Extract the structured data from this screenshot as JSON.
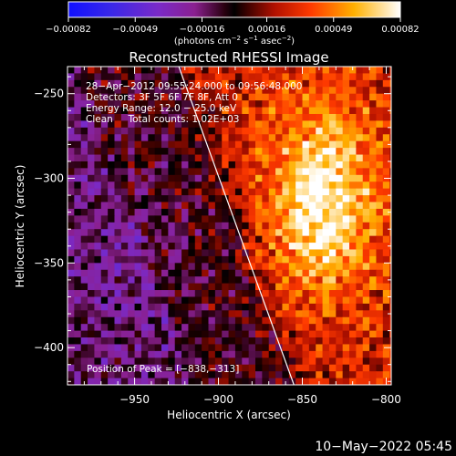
{
  "chart_data": {
    "type": "heatmap",
    "title": "Reconstructed RHESSI Image",
    "xlabel": "Heliocentric X (arcsec)",
    "ylabel": "Heliocentric Y (arcsec)",
    "xlim": [
      -990,
      -797
    ],
    "ylim": [
      -422,
      -234
    ],
    "x_ticks": [
      -950,
      -900,
      -850,
      -800
    ],
    "y_ticks": [
      -250,
      -300,
      -350,
      -400
    ],
    "x_tick_labels": [
      "−950",
      "−900",
      "−850",
      "−800"
    ],
    "y_tick_labels": [
      "−250",
      "−300",
      "−350",
      "−400"
    ],
    "colorbar": {
      "range": [
        -0.00082,
        0.00082
      ],
      "tick_values": [
        -0.00082,
        -0.00049,
        -0.00016,
        0.00016,
        0.00049,
        0.00082
      ],
      "tick_labels": [
        "−0.00082",
        "−0.00049",
        "−0.00016",
        "0.00016",
        "0.00049",
        "0.00082"
      ],
      "units_prefix": "(photons cm",
      "units_exp1": "−2",
      "units_mid": " s",
      "units_exp2": "−1",
      "units_mid2": " asec",
      "units_exp3": "−2",
      "units_suffix": ")"
    },
    "annotations": {
      "time": "28−Apr−2012 09:55:24.000 to 09:56:48.000",
      "detectors": "Detectors: 3F 5F 6F 7F 8F, Att 0",
      "energy": "Energy Range: 12.0 − 25.0 keV",
      "method": "Clean     Total counts: 1.02E+03",
      "peak": "Position of Peak = [−838,−313]"
    },
    "peak_position": [
      -838,
      -313
    ],
    "limb_line": {
      "x1": -924,
      "y1": -233,
      "x2": -855,
      "y2": -422
    },
    "bright_region": {
      "x_range": [
        -885,
        -800
      ],
      "y_range": [
        -420,
        -245
      ]
    },
    "grid": false,
    "footer_date": "10−May−2022 05:45"
  }
}
